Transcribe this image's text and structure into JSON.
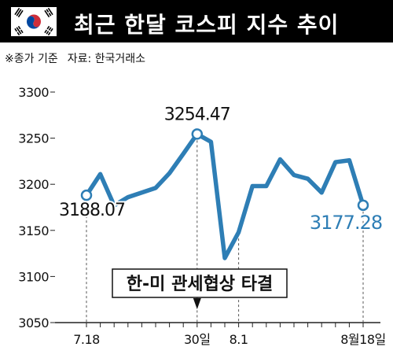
{
  "header": {
    "title": "최근 한달 코스피 지수 추이",
    "flag_icon": "korean-flag-icon",
    "background_color": "#000000",
    "text_color": "#ffffff"
  },
  "source": {
    "note": "※종가 기준",
    "label": "자료: 한국거래소"
  },
  "colors": {
    "line": "#2e7eb5",
    "highlight_value": "#2e7eb5",
    "axis": "#222222"
  },
  "chart_data": {
    "type": "line",
    "title": "최근 한달 코스피 지수 추이",
    "ylim": [
      3050,
      3300
    ],
    "yticks": [
      "3300",
      "3250",
      "3200",
      "3150",
      "3100",
      "3050"
    ],
    "x_ticks": [
      "7.18",
      "30일",
      "8.1",
      "8월18일"
    ],
    "series": [
      {
        "values": [
          3188.07,
          3211,
          3177,
          3186,
          3191,
          3196,
          3212,
          3233,
          3254.47,
          3246,
          3120,
          3148,
          3198,
          3198,
          3227,
          3210,
          3206,
          3191,
          3224,
          3226,
          3177.28
        ]
      }
    ],
    "annotations": [
      {
        "point_index": 0,
        "label": "3188.07"
      },
      {
        "point_index": 8,
        "label": "3254.47"
      },
      {
        "point_index": 20,
        "label": "3177.28"
      }
    ],
    "event": {
      "point_index": 8,
      "label": "한-미 관세협상 타결"
    }
  }
}
